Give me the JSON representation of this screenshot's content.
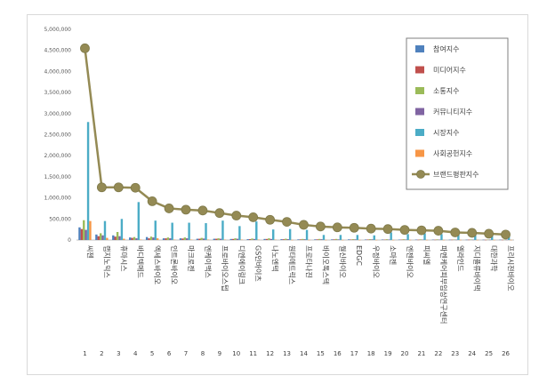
{
  "chart_data": {
    "type": "bar",
    "ylim": [
      0,
      5000000
    ],
    "y_ticks": [
      "0",
      "500,000",
      "1,000,000",
      "1,500,000",
      "2,000,000",
      "2,500,000",
      "3,000,000",
      "3,500,000",
      "4,000,000",
      "4,500,000",
      "5,000,000"
    ],
    "grid": false,
    "legend_placement": "top-right",
    "ranks": [
      "1",
      "2",
      "3",
      "4",
      "5",
      "6",
      "7",
      "8",
      "9",
      "10",
      "11",
      "12",
      "13",
      "14",
      "15",
      "16",
      "17",
      "18",
      "19",
      "20",
      "21",
      "22",
      "23",
      "24",
      "25",
      "26"
    ],
    "categories": [
      "씨젠",
      "랩지노믹스",
      "휴마시스",
      "바디텍메드",
      "엑세스바이오",
      "인트론바이오",
      "마크로젠",
      "엔케이맥스",
      "프로바이오스텝",
      "디엔에이링크",
      "GS인바이츠",
      "나노엔텍",
      "원타메트릭스",
      "프로타나진",
      "바이오톡스텍",
      "월신바이오",
      "EDGC",
      "우정바이오",
      "소마젠",
      "엔젠바이오",
      "피씨엘",
      "파멘케어피부임상연구센터",
      "엘라인드",
      "지디플류바이택",
      "대한과학",
      "프리시젼바이오"
    ],
    "series": [
      {
        "name": "참여지수",
        "color": "#4f81bd",
        "type": "bar",
        "values": [
          300000,
          130000,
          110000,
          60000,
          70000,
          40000,
          40000,
          30000,
          30000,
          25000,
          20000,
          25000,
          20000,
          15000,
          15000,
          15000,
          15000,
          12000,
          12000,
          10000,
          10000,
          10000,
          8000,
          8000,
          8000,
          8000
        ]
      },
      {
        "name": "미디어지수",
        "color": "#c0504d",
        "type": "bar",
        "values": [
          260000,
          90000,
          80000,
          50000,
          40000,
          40000,
          35000,
          30000,
          30000,
          25000,
          20000,
          25000,
          18000,
          15000,
          15000,
          15000,
          12000,
          12000,
          10000,
          10000,
          8000,
          8000,
          8000,
          8000,
          6000,
          6000
        ]
      },
      {
        "name": "소통지수",
        "color": "#9bbb59",
        "type": "bar",
        "values": [
          470000,
          160000,
          190000,
          70000,
          80000,
          60000,
          60000,
          50000,
          40000,
          40000,
          35000,
          40000,
          30000,
          25000,
          25000,
          25000,
          20000,
          20000,
          18000,
          18000,
          15000,
          15000,
          12000,
          12000,
          10000,
          10000
        ]
      },
      {
        "name": "커뮤니티지수",
        "color": "#8064a2",
        "type": "bar",
        "values": [
          240000,
          110000,
          90000,
          40000,
          60000,
          40000,
          40000,
          35000,
          30000,
          30000,
          25000,
          25000,
          20000,
          18000,
          18000,
          15000,
          15000,
          15000,
          12000,
          12000,
          10000,
          10000,
          8000,
          8000,
          8000,
          8000
        ]
      },
      {
        "name": "시장지수",
        "color": "#4bacc6",
        "type": "bar",
        "values": [
          2800000,
          450000,
          500000,
          900000,
          460000,
          410000,
          410000,
          400000,
          460000,
          330000,
          440000,
          250000,
          260000,
          240000,
          120000,
          120000,
          120000,
          110000,
          180000,
          140000,
          160000,
          140000,
          150000,
          120000,
          110000,
          110000
        ]
      },
      {
        "name": "사회공헌지수",
        "color": "#f79646",
        "type": "bar",
        "values": [
          450000,
          50000,
          30000,
          10000,
          40000,
          10000,
          10000,
          10000,
          10000,
          10000,
          10000,
          10000,
          5000,
          5000,
          5000,
          5000,
          5000,
          5000,
          5000,
          5000,
          5000,
          5000,
          5000,
          5000,
          5000,
          5000
        ]
      },
      {
        "name": "브랜드평판지수",
        "color": "#948a54",
        "type": "line",
        "values": [
          4550000,
          1250000,
          1250000,
          1240000,
          920000,
          750000,
          720000,
          700000,
          640000,
          580000,
          540000,
          480000,
          430000,
          360000,
          320000,
          300000,
          290000,
          270000,
          260000,
          240000,
          230000,
          220000,
          180000,
          170000,
          150000,
          130000
        ]
      }
    ]
  }
}
